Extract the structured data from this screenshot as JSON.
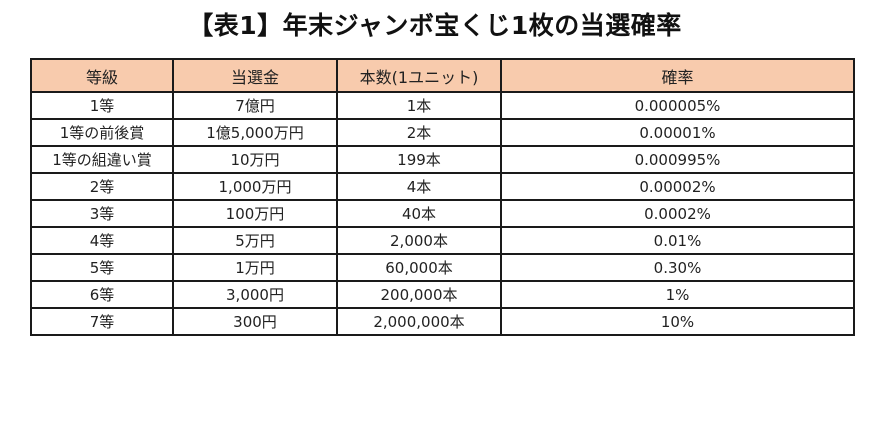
{
  "title": "【表1】年末ジャンボ宝くじ1枚の当選確率",
  "table": {
    "header_color": "#f8cbad",
    "columns": [
      "等級",
      "当選金",
      "本数(1ユニット)",
      "確率"
    ],
    "rows": [
      {
        "grade": "1等",
        "prize": "7億円",
        "count": "1本",
        "probability": "0.000005%"
      },
      {
        "grade": "1等の前後賞",
        "prize": "1億5,000万円",
        "count": "2本",
        "probability": "0.00001%"
      },
      {
        "grade": "1等の組違い賞",
        "prize": "10万円",
        "count": "199本",
        "probability": "0.000995%"
      },
      {
        "grade": "2等",
        "prize": "1,000万円",
        "count": "4本",
        "probability": "0.00002%"
      },
      {
        "grade": "3等",
        "prize": "100万円",
        "count": "40本",
        "probability": "0.0002%"
      },
      {
        "grade": "4等",
        "prize": "5万円",
        "count": "2,000本",
        "probability": "0.01%"
      },
      {
        "grade": "5等",
        "prize": "1万円",
        "count": "60,000本",
        "probability": "0.30%"
      },
      {
        "grade": "6等",
        "prize": "3,000円",
        "count": "200,000本",
        "probability": "1%"
      },
      {
        "grade": "7等",
        "prize": "300円",
        "count": "2,000,000本",
        "probability": "10%"
      }
    ]
  }
}
